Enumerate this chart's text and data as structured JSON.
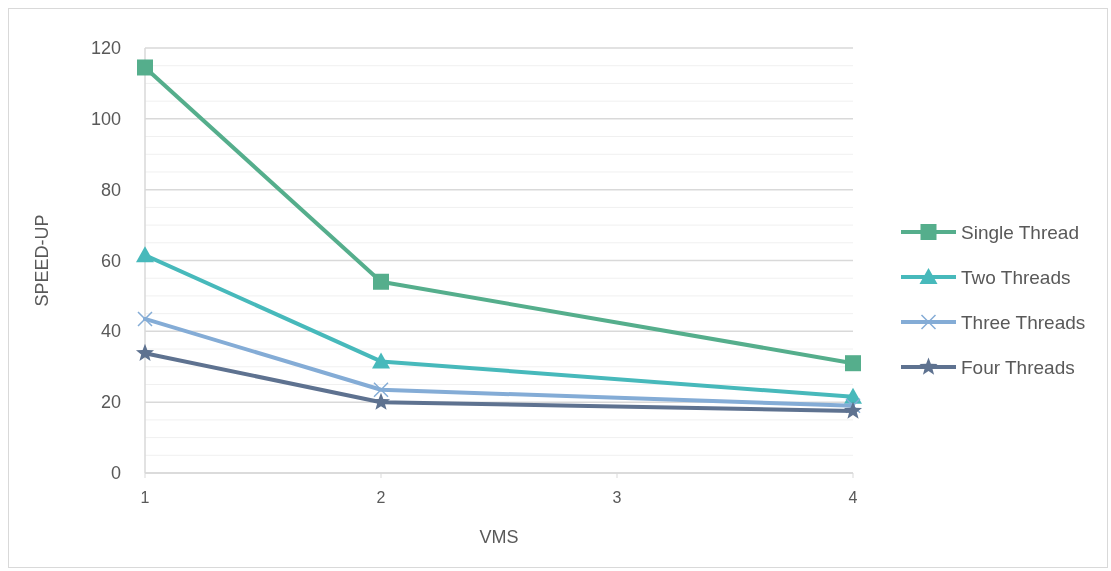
{
  "chart_data": {
    "type": "line",
    "xlabel": "VMS",
    "ylabel": "SPEED-UP",
    "x": [
      1,
      2,
      4
    ],
    "xlim": [
      1,
      4
    ],
    "xticks": [
      1,
      2,
      3,
      4
    ],
    "ylim": [
      0,
      120
    ],
    "yticks": [
      0,
      {
        "value": 5,
        "label": null
      },
      {
        "value": 10,
        "label": null
      },
      {
        "value": 15,
        "label": null
      },
      20,
      {
        "value": 25,
        "label": null
      },
      {
        "value": 30,
        "label": null
      },
      {
        "value": 35,
        "label": null
      },
      40,
      {
        "value": 45,
        "label": null
      },
      {
        "value": 50,
        "label": null
      },
      {
        "value": 55,
        "label": null
      },
      60,
      {
        "value": 65,
        "label": null
      },
      {
        "value": 70,
        "label": null
      },
      {
        "value": 75,
        "label": null
      },
      80,
      {
        "value": 85,
        "label": null
      },
      {
        "value": 90,
        "label": null
      },
      {
        "value": 95,
        "label": null
      },
      100,
      {
        "value": 105,
        "label": null
      },
      {
        "value": 110,
        "label": null
      },
      {
        "value": 115,
        "label": null
      },
      120
    ],
    "grid": "y",
    "legend": "right",
    "line_style": "solid",
    "series": [
      {
        "name": "Single Thread",
        "color": "#55ae8c",
        "marker": "square",
        "values": [
          114.5,
          54,
          31
        ]
      },
      {
        "name": "Two Threads",
        "color": "#47b9bb",
        "marker": "triangle",
        "values": [
          61.5,
          31.5,
          21.5
        ]
      },
      {
        "name": "Three Threads",
        "color": "#84acd6",
        "marker": "cross",
        "values": [
          43.5,
          23.5,
          19
        ]
      },
      {
        "name": "Four Threads",
        "color": "#5e7290",
        "marker": "star",
        "values": [
          33.8,
          20,
          17.5
        ]
      }
    ]
  }
}
